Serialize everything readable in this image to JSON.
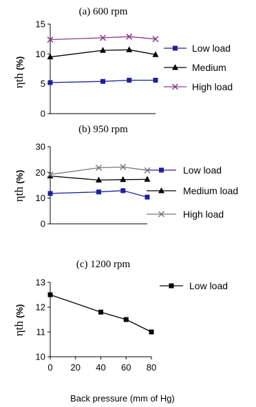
{
  "figure": {
    "xlabel": "Back pressure (mm of Hg)",
    "ylabel_symbol": "ηth",
    "ylabel_unit": "(%)"
  },
  "chart_data": [
    {
      "type": "line",
      "title": "(a) 600 rpm",
      "x": [
        0,
        40,
        60,
        80
      ],
      "ylim": [
        0,
        15
      ],
      "yticks": [
        0,
        5,
        10,
        15
      ],
      "grid": false,
      "legend_position": "right",
      "series": [
        {
          "name": "Low load",
          "values": [
            5.2,
            5.4,
            5.6,
            5.6
          ],
          "color": "#1f1f9e",
          "marker": "square"
        },
        {
          "name": "Medium",
          "values": [
            9.5,
            10.6,
            10.7,
            9.9
          ],
          "color": "#000000",
          "marker": "triangle"
        },
        {
          "name": "High load",
          "values": [
            12.4,
            12.7,
            12.9,
            12.5
          ],
          "color": "#8b3a8b",
          "marker": "x"
        }
      ]
    },
    {
      "type": "line",
      "title": "(b) 950 rpm",
      "x": [
        0,
        40,
        60,
        80
      ],
      "ylim": [
        0,
        30
      ],
      "yticks": [
        0,
        10,
        20,
        30
      ],
      "grid": false,
      "legend_position": "right",
      "series": [
        {
          "name": "Low  load",
          "values": [
            11.8,
            12.4,
            12.9,
            10.4
          ],
          "color": "#1f1f9e",
          "marker": "square"
        },
        {
          "name": "Medium load",
          "values": [
            18.6,
            17.0,
            17.2,
            17.3
          ],
          "color": "#000000",
          "marker": "triangle"
        },
        {
          "name": "High load",
          "values": [
            19.2,
            21.8,
            22.1,
            20.8
          ],
          "color": "#777777",
          "marker": "x"
        }
      ]
    },
    {
      "type": "line",
      "title": "(c) 1200 rpm",
      "x": [
        0,
        40,
        60,
        80
      ],
      "xlim": [
        0,
        80
      ],
      "xticks": [
        0,
        20,
        40,
        60,
        80
      ],
      "ylim": [
        10,
        13
      ],
      "yticks": [
        10,
        11,
        12,
        13
      ],
      "grid": false,
      "legend_position": "top-right",
      "series": [
        {
          "name": "Low load",
          "values": [
            12.5,
            11.8,
            11.5,
            11.0
          ],
          "color": "#000000",
          "marker": "square"
        }
      ]
    }
  ]
}
